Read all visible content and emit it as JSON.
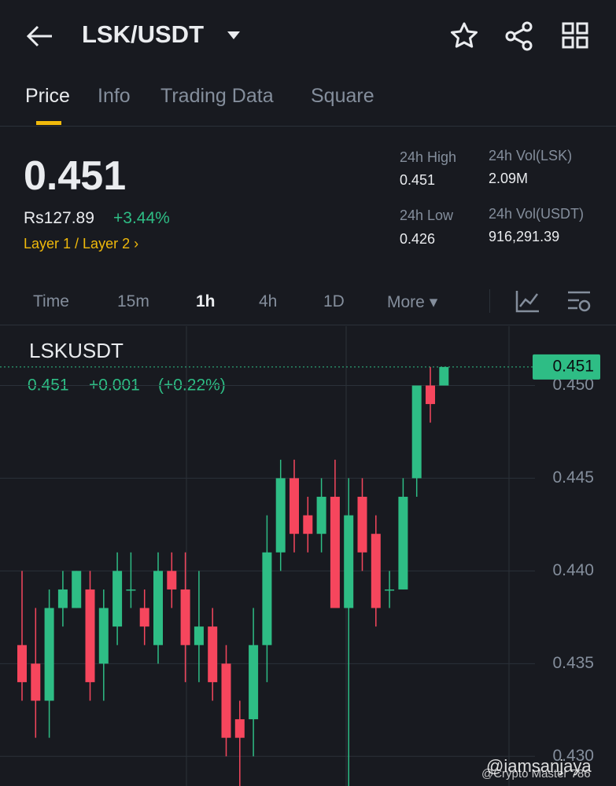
{
  "header": {
    "pair": "LSK/USDT"
  },
  "tabs": [
    "Price",
    "Info",
    "Trading Data",
    "Square"
  ],
  "ticker": {
    "price": "0.451",
    "fiat_price": "Rs127.89",
    "change": "+3.44%",
    "category": "Layer 1 / Layer 2",
    "stats": [
      {
        "label": "24h High",
        "value": "0.451"
      },
      {
        "label": "24h Vol(LSK)",
        "value": "2.09M"
      },
      {
        "label": "24h Low",
        "value": "0.426"
      },
      {
        "label": "24h Vol(USDT)",
        "value": "916,291.39"
      }
    ]
  },
  "intervals": [
    "Time",
    "15m",
    "1h",
    "4h",
    "1D",
    "More"
  ],
  "chart_data": {
    "type": "candlestick",
    "title": "LSKUSDT",
    "quote": {
      "last": "0.451",
      "change": "+0.001",
      "percent": "(+0.22%)"
    },
    "up_color": "#2ebd85",
    "down_color": "#f6465d",
    "last_price": 0.451,
    "ylim": [
      0.4284,
      0.4532
    ],
    "yticks": [
      {
        "value": 0.45,
        "label": "0.450"
      },
      0.445,
      {
        "value": 0.44,
        "label": "0.440"
      },
      0.435,
      {
        "value": 0.43,
        "label": "0.430"
      }
    ],
    "grid": true,
    "open": [
      0.436,
      0.435,
      0.433,
      0.438,
      0.438,
      0.439,
      0.435,
      0.437,
      0.439,
      0.438,
      0.436,
      0.44,
      0.439,
      0.436,
      0.437,
      0.435,
      0.432,
      0.432,
      0.436,
      0.441,
      0.445,
      0.443,
      0.442,
      0.444,
      0.438,
      0.444,
      0.442,
      0.439,
      0.439,
      0.445,
      0.45,
      0.45
    ],
    "high": [
      0.44,
      0.438,
      0.439,
      0.44,
      0.44,
      0.44,
      0.439,
      0.441,
      0.441,
      0.439,
      0.441,
      0.441,
      0.441,
      0.44,
      0.438,
      0.436,
      0.433,
      0.438,
      0.443,
      0.446,
      0.446,
      0.444,
      0.445,
      0.446,
      0.445,
      0.445,
      0.443,
      0.44,
      0.445,
      0.45,
      0.451,
      0.451
    ],
    "low": [
      0.433,
      0.431,
      0.431,
      0.437,
      0.438,
      0.433,
      0.433,
      0.436,
      0.438,
      0.436,
      0.435,
      0.438,
      0.434,
      0.434,
      0.433,
      0.43,
      0.428,
      0.43,
      0.434,
      0.44,
      0.441,
      0.441,
      0.441,
      0.438,
      0.428,
      0.44,
      0.437,
      0.438,
      0.439,
      0.444,
      0.448,
      0.45
    ],
    "close": [
      0.434,
      0.433,
      0.438,
      0.439,
      0.44,
      0.434,
      0.438,
      0.44,
      0.439,
      0.437,
      0.44,
      0.439,
      0.436,
      0.437,
      0.434,
      0.431,
      0.431,
      0.436,
      0.441,
      0.445,
      0.442,
      0.442,
      0.444,
      0.438,
      0.443,
      0.441,
      0.438,
      0.439,
      0.444,
      0.45,
      0.449,
      0.451
    ]
  },
  "watermarks": [
    "@iamsanjaya",
    "@Crypto Master 786"
  ]
}
